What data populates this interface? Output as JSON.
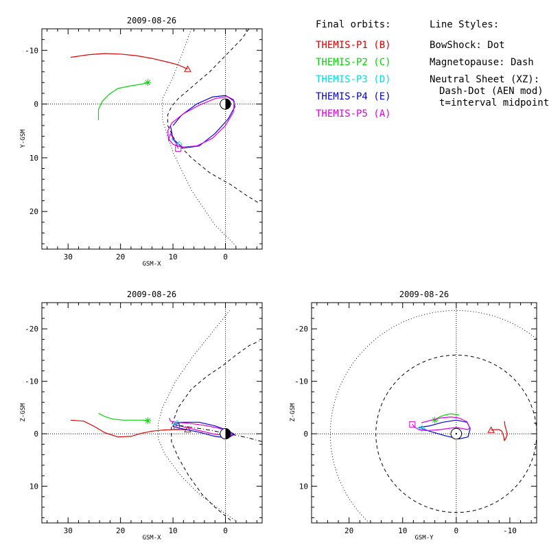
{
  "legend": {
    "orbits_title": "Final orbits:",
    "styles_title": "Line Styles:",
    "items": [
      {
        "label": "THEMIS-P1 (B)",
        "color": "#e00000"
      },
      {
        "label": "THEMIS-P2 (C)",
        "color": "#00d800"
      },
      {
        "label": "THEMIS-P3 (D)",
        "color": "#00e0e0"
      },
      {
        "label": "THEMIS-P4 (E)",
        "color": "#0000e0"
      },
      {
        "label": "THEMIS-P5 (A)",
        "color": "#e000e0"
      }
    ],
    "styles": [
      "BowShock: Dot",
      "Magnetopause: Dash",
      "Neutral Sheet (XZ):",
      "Dash-Dot (AEN mod)",
      "t=interval midpoint"
    ]
  },
  "chart_data": [
    {
      "id": "xy",
      "type": "line",
      "title": "2009-08-26",
      "xlabel": "GSM-X",
      "ylabel": "Y-GSM",
      "xlim": [
        35,
        -7
      ],
      "ylim": [
        -14,
        27
      ],
      "xticks": [
        30,
        20,
        10,
        0
      ],
      "yticks": [
        -10,
        0,
        10,
        20
      ],
      "series": [
        {
          "name": "THEMIS-P1 (B)",
          "color": "#e00000",
          "marker": "triangle",
          "x": [
            29.5,
            26,
            23,
            20,
            17,
            14,
            11,
            9,
            7.2
          ],
          "y": [
            -8.7,
            -9.2,
            -9.4,
            -9.3,
            -9,
            -8.5,
            -7.8,
            -7.3,
            -6.5
          ]
        },
        {
          "name": "THEMIS-P2 (C)",
          "color": "#00d800",
          "marker": "star",
          "x": [
            24.2,
            24.2,
            23.5,
            22.2,
            20.5,
            18,
            16,
            14.8
          ],
          "y": [
            3,
            1,
            -0.5,
            -1.8,
            -2.9,
            -3.4,
            -3.7,
            -4
          ]
        },
        {
          "name": "THEMIS-P4 (E)",
          "color": "#0000e0",
          "marker": "none",
          "x": [
            10.5,
            10,
            8,
            5,
            2,
            -0.5,
            -1.8,
            -1.5,
            0,
            2.5,
            5.5,
            8.3,
            10
          ],
          "y": [
            4,
            6.5,
            8.2,
            7.8,
            5.5,
            2.8,
            0.5,
            -0.8,
            -1.6,
            -1.3,
            0,
            2,
            4
          ]
        },
        {
          "name": "THEMIS-P3 (D)",
          "color": "#00e0e0",
          "marker": "diamond",
          "x": [
            10.3,
            9.6,
            8.8
          ],
          "y": [
            6.4,
            7.1,
            7.5
          ]
        },
        {
          "name": "THEMIS-P5 (A)",
          "color": "#e000e0",
          "marker": "square",
          "x": [
            10.8,
            11,
            10.2,
            8,
            5,
            2,
            -0.3,
            -1.7,
            -1.5,
            0,
            2.5,
            5.5,
            8.3,
            10,
            10.8,
            10.5,
            9.3,
            9
          ],
          "y": [
            7,
            5,
            3.5,
            1.8,
            0.2,
            -1,
            -1.4,
            -0.5,
            1.5,
            4,
            6.4,
            7.8,
            8,
            7.5,
            6.5,
            5.5,
            7.5,
            8.3
          ]
        }
      ],
      "bowshock": {
        "x": [
          6.5,
          8,
          10,
          12,
          12,
          10,
          6.5,
          2,
          -2.1
        ],
        "y": [
          -14,
          -10,
          -5,
          -1,
          3,
          9,
          16,
          22.5,
          26.5
        ]
      },
      "magnetopause": {
        "x": [
          -4.5,
          -3,
          -1,
          1,
          3,
          6,
          9,
          10.3,
          11,
          11,
          9.5,
          6.5,
          3,
          -1,
          -4,
          -6.5
        ],
        "y": [
          -14,
          -12,
          -10,
          -8,
          -6,
          -3.5,
          -1,
          0.5,
          2,
          4,
          7,
          10,
          12.8,
          15,
          17,
          18.5
        ]
      },
      "earth": {
        "x": 0,
        "y": 0
      }
    },
    {
      "id": "xz",
      "type": "line",
      "title": "2009-08-26",
      "xlabel": "GSM-X",
      "ylabel": "Z-GSM",
      "xlim": [
        35,
        -7
      ],
      "ylim": [
        -25,
        17
      ],
      "xticks": [
        30,
        20,
        10,
        0
      ],
      "yticks": [
        10,
        0,
        -10,
        -20
      ],
      "series": [
        {
          "name": "THEMIS-P1 (B)",
          "color": "#e00000",
          "marker": "triangle",
          "x": [
            29.5,
            27,
            25,
            23,
            20.5,
            18,
            16,
            14,
            12,
            10,
            8,
            7.2
          ],
          "y": [
            -2.6,
            -2.4,
            -1.4,
            -0.2,
            0.6,
            0.5,
            -0.1,
            -0.5,
            -0.7,
            -0.8,
            -0.8,
            -0.8
          ]
        },
        {
          "name": "THEMIS-P2 (C)",
          "color": "#00d800",
          "marker": "star",
          "x": [
            24.2,
            23,
            21.5,
            19.5,
            17.5,
            15.8,
            14.8
          ],
          "y": [
            -3.9,
            -3.3,
            -2.8,
            -2.6,
            -2.6,
            -2.6,
            -2.5
          ]
        },
        {
          "name": "THEMIS-P4 (E)",
          "color": "#0000e0",
          "marker": "none",
          "x": [
            10,
            8.5,
            5,
            2,
            -0.5,
            -1.7,
            -0.5,
            2,
            5,
            8.5,
            10,
            10
          ],
          "y": [
            -1.6,
            -2.2,
            -2.2,
            -1.5,
            -0.6,
            0.1,
            0.8,
            0.5,
            -0.3,
            -1,
            -1.4,
            -1.6
          ]
        },
        {
          "name": "THEMIS-P3 (D)",
          "color": "#00e0e0",
          "marker": "diamond",
          "x": [
            10,
            9.6,
            9.2
          ],
          "y": [
            -1.6,
            -1.8,
            -2
          ]
        },
        {
          "name": "THEMIS-P5 (A)",
          "color": "#e000e0",
          "marker": "square",
          "x": [
            10.7,
            10.5,
            9.5,
            7,
            4,
            1,
            -0.8,
            -1.5,
            -0.2,
            2,
            5,
            8,
            9.5,
            9.3
          ],
          "y": [
            -3,
            -2.4,
            -2.2,
            -2,
            -1.6,
            -1,
            -0.5,
            0.2,
            0.4,
            0.1,
            -0.6,
            -1.3,
            -1.7,
            -1.4
          ]
        },
        {
          "name": "Neutral Sheet",
          "color": "#000000",
          "marker": "none",
          "x": [
            -7,
            -4,
            -1.5,
            0,
            1.5,
            3,
            5,
            7,
            9
          ],
          "y": [
            1.5,
            0.7,
            0.2,
            -0.2,
            -0.4,
            -0.7,
            -1,
            -1.3,
            -1.6
          ]
        }
      ],
      "bowshock": {
        "x": [
          -1.8,
          1,
          5,
          8.5,
          11.5,
          12.8,
          12.8,
          12,
          9.5,
          6,
          2,
          -0.8
        ],
        "y": [
          16.5,
          14.5,
          11.5,
          8,
          4,
          1,
          -2,
          -5,
          -10,
          -15,
          -20,
          -23.5
        ]
      },
      "magnetopause": {
        "x": [
          -1,
          2,
          4.5,
          7,
          9,
          10.3,
          10.3,
          9,
          6.5,
          3.5,
          0.5,
          -2,
          -4.5,
          -6.5
        ],
        "y": [
          16.5,
          14,
          11.5,
          8,
          4.5,
          1.5,
          -1.5,
          -5,
          -8.5,
          -11,
          -13,
          -15,
          -16.8,
          -17.7
        ]
      },
      "earth": {
        "x": 0,
        "y": 0
      }
    },
    {
      "id": "yz",
      "type": "line",
      "title": "2009-08-26",
      "xlabel": "GSM-Y",
      "ylabel": "Z-GSM",
      "xlim": [
        27,
        -15
      ],
      "ylim": [
        -25,
        17
      ],
      "xticks": [
        20,
        10,
        0,
        -10
      ],
      "yticks": [
        10,
        0,
        -10,
        -20
      ],
      "series": [
        {
          "name": "THEMIS-P1 (B)",
          "color": "#e00000",
          "marker": "triangle",
          "x": [
            -9,
            -9.1,
            -9.3,
            -9.5,
            -9.3,
            -9,
            -8.8,
            -8.5,
            -8,
            -7.2,
            -6.5
          ],
          "y": [
            -2.4,
            -1.5,
            -0.8,
            0.1,
            0.8,
            1.3,
            0.3,
            -0.5,
            -0.8,
            -0.8,
            -0.7
          ]
        },
        {
          "name": "THEMIS-P2 (C)",
          "color": "#00d800",
          "marker": "star",
          "x": [
            -0.5,
            1,
            2,
            3,
            4
          ],
          "y": [
            -3.6,
            -3.8,
            -3.6,
            -3.3,
            -2.6
          ]
        },
        {
          "name": "THEMIS-P4 (E)",
          "color": "#0000e0",
          "marker": "none",
          "x": [
            7,
            5,
            2,
            -0.5,
            -2.2,
            -2.6,
            -2,
            0,
            2.5,
            5,
            7
          ],
          "y": [
            -1.2,
            -0.5,
            0.4,
            1,
            0.6,
            -1,
            -2.2,
            -2.6,
            -2.2,
            -1.5,
            -1.2
          ]
        },
        {
          "name": "THEMIS-P3 (D)",
          "color": "#00e0e0",
          "marker": "diamond",
          "x": [
            7.2,
            6.8,
            6.4
          ],
          "y": [
            -1.2,
            -1.1,
            -1
          ]
        },
        {
          "name": "THEMIS-P5 (A)",
          "color": "#e000e0",
          "marker": "square",
          "x": [
            6.5,
            5,
            3,
            1,
            -0.5,
            -2,
            -2.5,
            -2.2,
            0,
            3,
            5.5,
            7,
            7.8,
            8.2
          ],
          "y": [
            -2.1,
            -2.5,
            -3,
            -3.2,
            -3,
            -2.3,
            -1.2,
            -0.8,
            -1.2,
            -0.8,
            -0.6,
            -0.8,
            -1.3,
            -1.8
          ]
        }
      ],
      "bowshock": {
        "cx": 0,
        "cy": 0,
        "r": 23.5
      },
      "magnetopause": {
        "cx": 0,
        "cy": 0,
        "r": 15
      },
      "earth": {
        "x": 0,
        "y": 0
      }
    }
  ]
}
